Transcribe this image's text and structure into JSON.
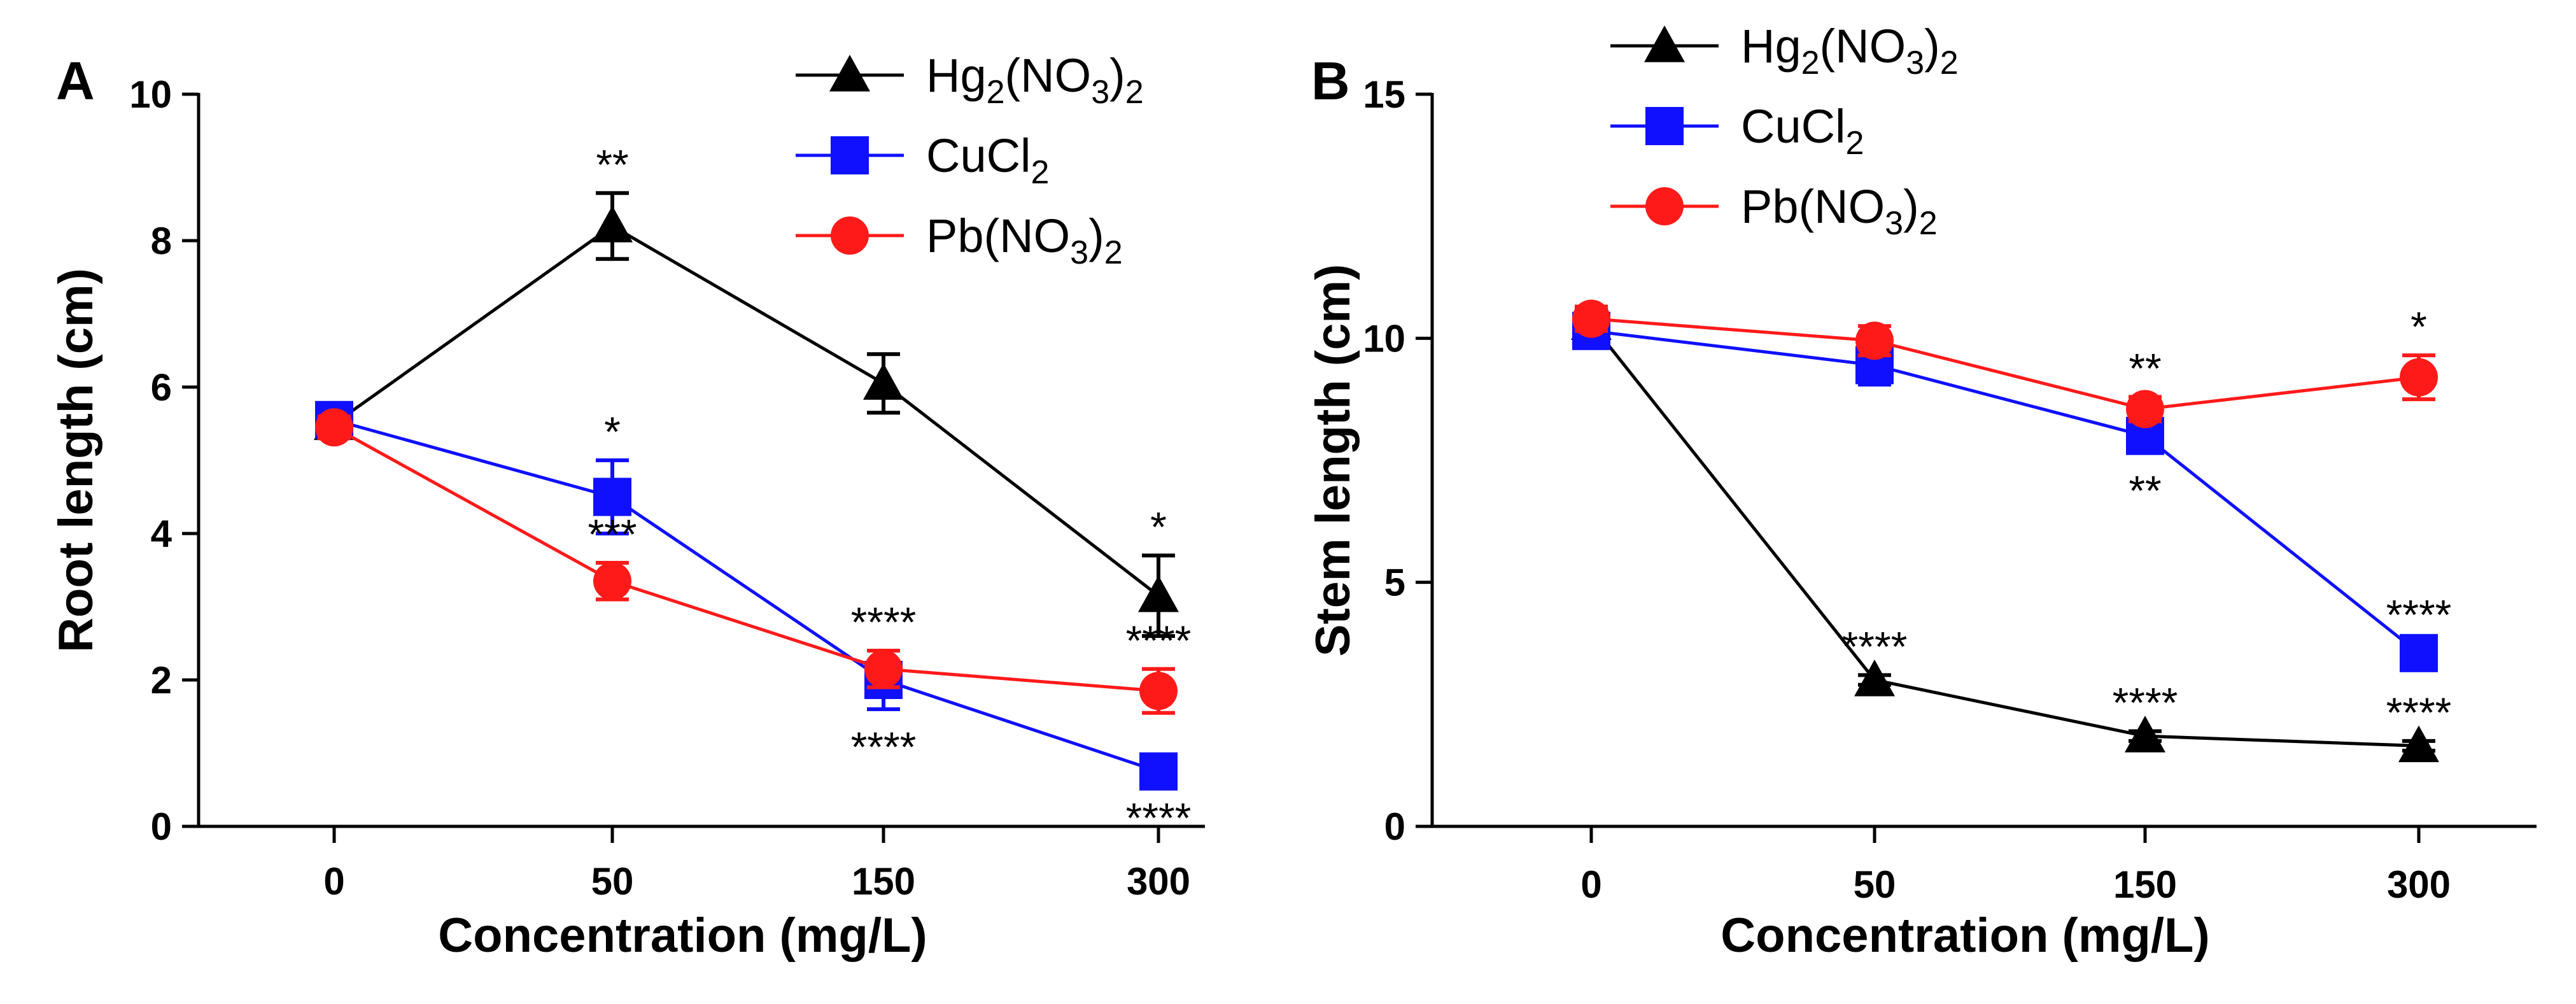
{
  "chart_data": [
    {
      "panel": "A",
      "type": "line",
      "xlabel": "Concentration (mg/L)",
      "ylabel": "Root length (cm)",
      "categories": [
        "0",
        "50",
        "150",
        "300"
      ],
      "yticks": [
        "0",
        "2",
        "4",
        "6",
        "8",
        "10"
      ],
      "ylim": [
        0,
        10
      ],
      "series": [
        {
          "name": "Hg2(NO3)2",
          "label_main": "Hg",
          "label_parts": [
            "2",
            "(NO",
            "3",
            ")",
            "2"
          ],
          "color": "#000000",
          "marker": "triangle",
          "values": [
            5.5,
            8.2,
            6.05,
            3.15
          ],
          "errors": [
            0.15,
            0.45,
            0.4,
            0.55
          ],
          "sig": [
            "",
            "**",
            "",
            "*"
          ],
          "sig_side": [
            "",
            "above",
            "",
            "above"
          ]
        },
        {
          "name": "CuCl2",
          "label_main": "CuCl",
          "label_parts": [
            "2"
          ],
          "color": "#1010ff",
          "marker": "square",
          "values": [
            5.55,
            4.5,
            2.0,
            0.75
          ],
          "errors": [
            0.15,
            0.5,
            0.4,
            0.12
          ],
          "sig": [
            "",
            "*",
            "****",
            "****"
          ],
          "sig_side": [
            "",
            "above",
            "below",
            "below"
          ]
        },
        {
          "name": "Pb(NO3)2",
          "label_main": "Pb(NO",
          "label_parts": [
            "3",
            ")",
            "2"
          ],
          "color": "#ff1a1a",
          "marker": "circle",
          "values": [
            5.45,
            3.35,
            2.15,
            1.85
          ],
          "errors": [
            0.15,
            0.25,
            0.25,
            0.3
          ],
          "sig": [
            "",
            "***",
            "****",
            "****"
          ],
          "sig_side": [
            "",
            "above",
            "above",
            "above"
          ]
        }
      ]
    },
    {
      "panel": "B",
      "type": "line",
      "xlabel": "Concentration (mg/L)",
      "ylabel": "Stem length (cm)",
      "categories": [
        "0",
        "50",
        "150",
        "300"
      ],
      "yticks": [
        "0",
        "5",
        "10",
        "15"
      ],
      "ylim": [
        0,
        15
      ],
      "series": [
        {
          "name": "Hg2(NO3)2",
          "label_main": "Hg",
          "label_parts": [
            "2",
            "(NO",
            "3",
            ")",
            "2"
          ],
          "color": "#000000",
          "marker": "triangle",
          "values": [
            10.3,
            3.0,
            1.85,
            1.65
          ],
          "errors": [
            0.3,
            0.1,
            0.1,
            0.1
          ],
          "sig": [
            "",
            "****",
            "****",
            "****"
          ],
          "sig_side": [
            "",
            "above",
            "above",
            "above"
          ]
        },
        {
          "name": "CuCl2",
          "label_main": "CuCl",
          "label_parts": [
            "2"
          ],
          "color": "#1010ff",
          "marker": "square",
          "values": [
            10.15,
            9.45,
            8.0,
            3.55
          ],
          "errors": [
            0.35,
            0.4,
            0.35,
            0.2
          ],
          "sig": [
            "",
            "",
            "**",
            "****"
          ],
          "sig_side": [
            "",
            "",
            "below",
            "above"
          ]
        },
        {
          "name": "Pb(NO3)2",
          "label_main": "Pb(NO",
          "label_parts": [
            "3",
            ")",
            "2"
          ],
          "color": "#ff1a1a",
          "marker": "circle",
          "values": [
            10.4,
            9.95,
            8.55,
            9.2
          ],
          "errors": [
            0.25,
            0.3,
            0.25,
            0.45
          ],
          "sig": [
            "",
            "",
            "**",
            "*"
          ],
          "sig_side": [
            "",
            "",
            "above",
            "above"
          ]
        }
      ]
    }
  ]
}
